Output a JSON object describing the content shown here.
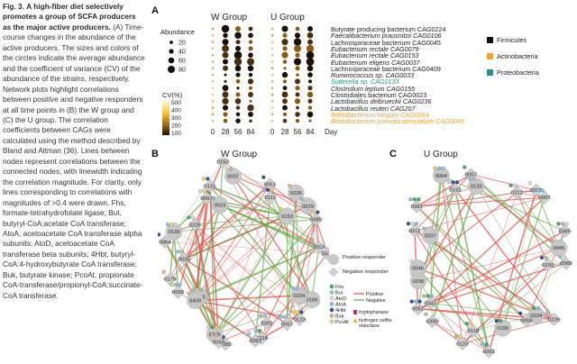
{
  "caption": {
    "fig_label": "Fig. 3.",
    "title": "A high-fiber diet selectively promotes a group of SCFA producers as the major active producers.",
    "body": " (A) Time-course changes in the abundance of the active producers. The sizes and colors of the circles indicate the average abundance and the coefficient of variance (CV) of the abundance of the strains, respectively. Network plots highlight correlations between positive and negative responders at all time points in (B) the W group and (C) the U group. The correlation coefficients between CAGs were calculated using the method described by Bland and Altman (36). Lines between nodes represent correlations between the connected nodes, with linewidth indicating the correlation magnitude. For clarity, only lines corresponding to correlations with magnitudes of >0.4 were drawn. Fhs, formate-tetrahydrofolate ligase; But, butyryl-CoA:acetate CoA transferase; AtoA, acetoacetate CoA transferase alpha subunits; AtoD, acetoacetate CoA transferase beta subunits; 4Hbt, butyryl-CoA:4-hydroxybutyrate CoA transferase; Buk, butyrate kinase; PcoAt, propionate CoA-transferase/propionyl-CoA:succinate-CoA transferase."
  },
  "panel_a": {
    "letter": "A",
    "w_group_title": "W Group",
    "u_group_title": "U Group",
    "abundance_title": "Abundance",
    "abundance_levels": [
      "20",
      "40",
      "60",
      "80"
    ],
    "abundance_values": [
      20,
      40,
      60,
      80
    ],
    "cv_title": "CV(%)",
    "cv_ticks": [
      "500",
      "400",
      "300",
      "200",
      "100"
    ],
    "days": [
      "0",
      "28",
      "56",
      "84",
      "0",
      "28",
      "56",
      "84"
    ],
    "day_label": "Day",
    "bacteria": [
      {
        "name": "Butyrate producing bacterium CAG0224",
        "italic": false,
        "phylum": "Firmicutes"
      },
      {
        "name": "Faecalibacterium prausnitzii CAG0106",
        "italic": true,
        "phylum": "Firmicutes"
      },
      {
        "name": "Lachnospiraceae bacterium CAG0045",
        "italic": false,
        "phylum": "Firmicutes"
      },
      {
        "name": "Eubacterium rectale CAG0079",
        "italic": true,
        "phylum": "Firmicutes"
      },
      {
        "name": "Eubacterium rectale CAG0153",
        "italic": true,
        "phylum": "Firmicutes"
      },
      {
        "name": "Eubacterium eligens CAG0037",
        "italic": true,
        "phylum": "Firmicutes"
      },
      {
        "name": "Lachnospiraceae bacterium CAG0409",
        "italic": false,
        "phylum": "Firmicutes"
      },
      {
        "name": "Ruminococcus sp. CAG0033",
        "italic": true,
        "phylum": "Firmicutes"
      },
      {
        "name": "Sutterella sp. CAG0133",
        "italic": true,
        "phylum": "Proteobacteria"
      },
      {
        "name": "Clostridium leptum CAG0155",
        "italic": true,
        "phylum": "Firmicutes"
      },
      {
        "name": "Clostridiales bacterium CAG0023",
        "italic": false,
        "phylum": "Firmicutes"
      },
      {
        "name": "Lactobacillus delbrueckii CAG0236",
        "italic": true,
        "phylum": "Firmicutes"
      },
      {
        "name": "Lactobacillus reuteri CAG207",
        "italic": true,
        "phylum": "Firmicutes"
      },
      {
        "name": "Bifidobacterium longum CAG0064",
        "italic": true,
        "phylum": "Actinobacteria"
      },
      {
        "name": "Bifidobacterium pseudocatenulatum CAG0046",
        "italic": true,
        "phylum": "Actinobacteria"
      }
    ],
    "phyla": [
      {
        "name": "Firmicutes",
        "color": "#111111"
      },
      {
        "name": "Actinobacteria",
        "color": "#e8a33a"
      },
      {
        "name": "Proteobacteria",
        "color": "#2f8e8e"
      }
    ]
  },
  "panel_b": {
    "letter": "B",
    "title": "W Group",
    "nodes": [
      {
        "id": "0106",
        "kind": "pos"
      },
      {
        "id": "0224",
        "kind": "pos"
      },
      {
        "id": "0057",
        "kind": "neg"
      },
      {
        "id": "0123",
        "kind": "neg"
      },
      {
        "id": "0391",
        "kind": "neg"
      },
      {
        "id": "0118",
        "kind": "neg"
      },
      {
        "id": "0281",
        "kind": "neg"
      },
      {
        "id": "0089",
        "kind": "neg"
      },
      {
        "id": "0045",
        "kind": "pos"
      },
      {
        "id": "0059",
        "kind": "neg"
      },
      {
        "id": "0155",
        "kind": "pos"
      },
      {
        "id": "0409",
        "kind": "pos"
      },
      {
        "id": "0179",
        "kind": "neg"
      },
      {
        "id": "0056",
        "kind": "neg"
      },
      {
        "id": "0035",
        "kind": "neg"
      },
      {
        "id": "0064",
        "kind": "neg"
      },
      {
        "id": "0133",
        "kind": "pos"
      },
      {
        "id": "0226",
        "kind": "neg"
      },
      {
        "id": "0097",
        "kind": "neg"
      },
      {
        "id": "0023",
        "kind": "pos"
      },
      {
        "id": "0131",
        "kind": "neg"
      },
      {
        "id": "0150",
        "kind": "neg"
      },
      {
        "id": "0037",
        "kind": "pos"
      },
      {
        "id": "0051",
        "kind": "neg"
      },
      {
        "id": "0111",
        "kind": "neg"
      },
      {
        "id": "0236",
        "kind": "pos"
      },
      {
        "id": "0079",
        "kind": "pos"
      },
      {
        "id": "0153",
        "kind": "pos"
      },
      {
        "id": "0385",
        "kind": "neg"
      },
      {
        "id": "0055",
        "kind": "neg"
      },
      {
        "id": "0031",
        "kind": "neg"
      }
    ]
  },
  "panel_c": {
    "letter": "C",
    "title": "U Group",
    "nodes": [
      {
        "id": "0089",
        "kind": "neg"
      },
      {
        "id": "0226",
        "kind": "neg"
      },
      {
        "id": "0224",
        "kind": "pos"
      },
      {
        "id": "0059",
        "kind": "neg"
      },
      {
        "id": "0091",
        "kind": "neg"
      },
      {
        "id": "0155",
        "kind": "pos"
      },
      {
        "id": "0123",
        "kind": "neg"
      },
      {
        "id": "0118",
        "kind": "neg"
      },
      {
        "id": "0390",
        "kind": "neg"
      },
      {
        "id": "0051",
        "kind": "neg"
      },
      {
        "id": "0341",
        "kind": "neg"
      },
      {
        "id": "0236",
        "kind": "pos"
      },
      {
        "id": "0046",
        "kind": "pos"
      },
      {
        "id": "0111",
        "kind": "neg"
      },
      {
        "id": "0207",
        "kind": "pos"
      },
      {
        "id": "0391",
        "kind": "neg"
      },
      {
        "id": "0131",
        "kind": "neg"
      },
      {
        "id": "0064",
        "kind": "pos"
      },
      {
        "id": "0057",
        "kind": "neg"
      },
      {
        "id": "0133",
        "kind": "pos"
      },
      {
        "id": "0312",
        "kind": "neg"
      },
      {
        "id": "0035",
        "kind": "neg"
      },
      {
        "id": "0097",
        "kind": "neg"
      },
      {
        "id": "0385",
        "kind": "neg"
      },
      {
        "id": "0045",
        "kind": "pos"
      },
      {
        "id": "0150",
        "kind": "neg"
      }
    ]
  },
  "network_legend": {
    "positive_responder": "Positive responder",
    "negative_responder": "Negative responder",
    "genes": [
      "Fhs",
      "But",
      "AtoD",
      "AtoA",
      "4Hbt",
      "Buk",
      "PcoAt"
    ],
    "gene_colors": [
      "#4aa86a",
      "#8ec9e8",
      "#d8d8d8",
      "#8fc0d8",
      "#3a4a9a",
      "#c8b8a0",
      "#f0d070"
    ],
    "positive_line": "Positive",
    "negative_line": "Negative",
    "positive_color": "#d9534f",
    "negative_color": "#6aa84f",
    "tryptophanase": "tryptophanase",
    "hydrogen_sulfite": "hydrogen sulfite reductase",
    "tryptophanase_color": "#c0306a",
    "hydrogen_sulfite_color": "#e8a020"
  }
}
